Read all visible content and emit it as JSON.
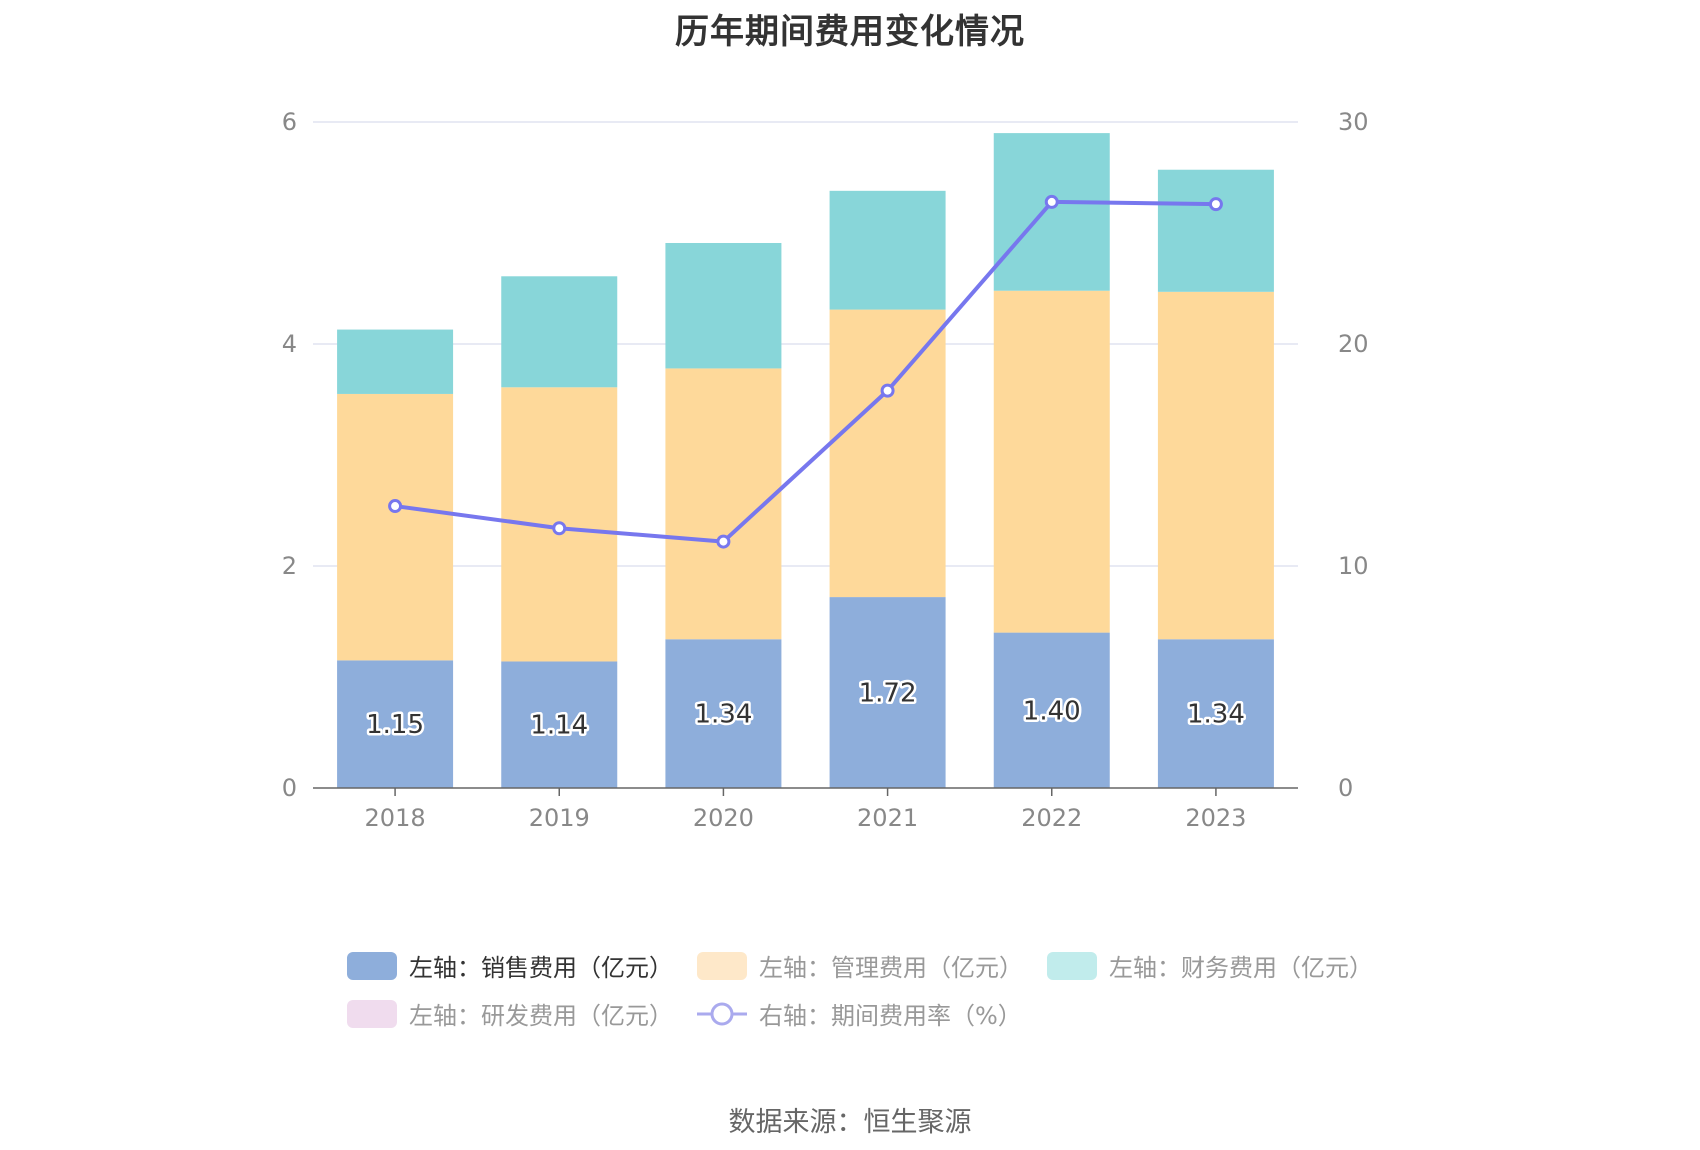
{
  "chart_data": {
    "type": "bar",
    "title": "历年期间费用变化情况",
    "categories": [
      "2018",
      "2019",
      "2020",
      "2021",
      "2022",
      "2023"
    ],
    "left_axis": {
      "ylim": [
        0,
        6
      ],
      "ticks": [
        "0",
        "2",
        "4",
        "6"
      ]
    },
    "right_axis": {
      "ylim": [
        0,
        30
      ],
      "ticks": [
        "0",
        "10",
        "20",
        "30"
      ]
    },
    "series": [
      {
        "name": "左轴：销售费用（亿元）",
        "axis": "left",
        "kind": "bar",
        "color": "#8eaedb",
        "values": [
          1.15,
          1.14,
          1.34,
          1.72,
          1.4,
          1.34
        ],
        "labels": [
          "1.15",
          "1.14",
          "1.34",
          "1.72",
          "1.40",
          "1.34"
        ]
      },
      {
        "name": "左轴：管理费用（亿元）",
        "axis": "left",
        "kind": "bar",
        "color": "#fed99a",
        "values": [
          2.4,
          2.47,
          2.44,
          2.59,
          3.08,
          3.13
        ]
      },
      {
        "name": "左轴：财务费用（亿元）",
        "axis": "left",
        "kind": "bar",
        "color": "#88d6d9",
        "values": [
          0.58,
          1.0,
          1.13,
          1.07,
          1.42,
          1.1
        ]
      },
      {
        "name": "左轴：研发费用（亿元）",
        "axis": "left",
        "kind": "bar",
        "color": "#f0dcee",
        "values": [
          0,
          0,
          0,
          0,
          0,
          0
        ]
      },
      {
        "name": "右轴：期间费用率（%）",
        "axis": "right",
        "kind": "line",
        "color": "#7777ee",
        "values": [
          12.7,
          11.7,
          11.1,
          17.9,
          26.4,
          26.3
        ]
      }
    ],
    "legend_position": "bottom",
    "grid": true
  },
  "legend": {
    "items": [
      {
        "label": "左轴：销售费用（亿元）",
        "color": "#8eaedb",
        "active": true
      },
      {
        "label": "左轴：管理费用（亿元）",
        "color": "#fee8c9",
        "active": false
      },
      {
        "label": "左轴：财务费用（亿元）",
        "color": "#c1ecec",
        "active": false
      },
      {
        "label": "左轴：研发费用（亿元）",
        "color": "#f0dcee",
        "active": false
      },
      {
        "label": "右轴：期间费用率（%）",
        "color": "#aaaaee",
        "active": false
      }
    ]
  },
  "source": "数据来源：恒生聚源"
}
